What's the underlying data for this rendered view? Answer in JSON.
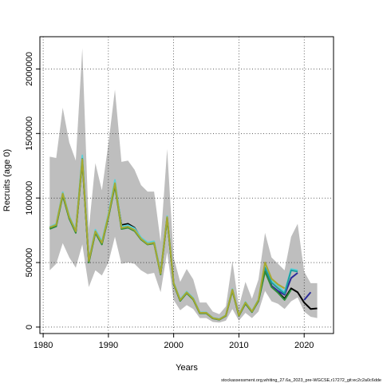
{
  "chart_data": {
    "type": "line",
    "xlabel": "Years",
    "ylabel": "Recruits (age 0)",
    "xlim": [
      1979.5,
      2024.5
    ],
    "ylim": [
      -50000,
      2250000
    ],
    "x_ticks": [
      1980,
      1990,
      2000,
      2010,
      2020
    ],
    "y_ticks": [
      0,
      500000,
      1000000,
      1500000,
      2000000
    ],
    "grid": "dotted",
    "footer": "stockassessment.org,whiting_27.6a_2023_pre-WGCSE,r17272_git:ec2c2a0c6dde",
    "colors": {
      "band": "#bebebe",
      "black": "#000000",
      "navy": "#2c2c9a",
      "cyan": "#5fd0d8",
      "teal": "#1e9e9e",
      "green": "#2e8b3a",
      "olive": "#a8a830"
    },
    "band": {
      "x": [
        1981,
        1982,
        1983,
        1984,
        1985,
        1986,
        1987,
        1988,
        1989,
        1990,
        1991,
        1992,
        1993,
        1994,
        1995,
        1996,
        1997,
        1998,
        1999,
        2000,
        2001,
        2002,
        2003,
        2004,
        2005,
        2006,
        2007,
        2008,
        2009,
        2010,
        2011,
        2012,
        2013,
        2014,
        2015,
        2016,
        2017,
        2018,
        2019,
        2020,
        2021,
        2022
      ],
      "upper": [
        1320000,
        1310000,
        1700000,
        1430000,
        1290000,
        2160000,
        760000,
        1270000,
        1060000,
        1420000,
        1840000,
        1280000,
        1290000,
        1220000,
        1100000,
        1050000,
        1050000,
        660000,
        1380000,
        540000,
        350000,
        450000,
        370000,
        190000,
        190000,
        120000,
        100000,
        160000,
        510000,
        160000,
        350000,
        220000,
        370000,
        730000,
        540000,
        490000,
        440000,
        700000,
        800000,
        430000,
        340000,
        340000
      ],
      "lower": [
        440000,
        490000,
        650000,
        540000,
        460000,
        640000,
        310000,
        440000,
        400000,
        500000,
        700000,
        490000,
        500000,
        490000,
        440000,
        410000,
        420000,
        270000,
        580000,
        210000,
        130000,
        170000,
        140000,
        70000,
        70000,
        40000,
        35000,
        50000,
        140000,
        50000,
        110000,
        70000,
        120000,
        280000,
        200000,
        180000,
        140000,
        200000,
        230000,
        120000,
        80000,
        70000
      ]
    },
    "series": [
      {
        "color": "#000000",
        "x": [
          1981,
          1982,
          1983,
          1984,
          1985,
          1986,
          1987,
          1988,
          1989,
          1990,
          1991,
          1992,
          1993,
          1994,
          1995,
          1996,
          1997,
          1998,
          1999,
          2000,
          2001,
          2002,
          2003,
          2004,
          2005,
          2006,
          2007,
          2008,
          2009,
          2010,
          2011,
          2012,
          2013,
          2014,
          2015,
          2016,
          2017,
          2018,
          2019,
          2020,
          2021,
          2022
        ],
        "values": [
          770000,
          790000,
          1030000,
          850000,
          740000,
          1300000,
          510000,
          740000,
          650000,
          860000,
          1110000,
          790000,
          800000,
          770000,
          690000,
          650000,
          660000,
          420000,
          850000,
          340000,
          210000,
          270000,
          220000,
          110000,
          110000,
          70000,
          60000,
          90000,
          290000,
          90000,
          190000,
          120000,
          210000,
          450000,
          320000,
          270000,
          220000,
          300000,
          270000,
          190000,
          140000,
          145000
        ]
      },
      {
        "color": "#2c2c9a",
        "x": [
          1981,
          1982,
          1983,
          1984,
          1985,
          1986,
          1987,
          1988,
          1989,
          1990,
          1991,
          1992,
          1993,
          1994,
          1995,
          1996,
          1997,
          1998,
          1999,
          2000,
          2001,
          2002,
          2003,
          2004,
          2005,
          2006,
          2007,
          2008,
          2009,
          2010,
          2011,
          2012,
          2013,
          2014,
          2015,
          2016,
          2017,
          2018,
          2019
        ],
        "values": [
          765000,
          785000,
          1025000,
          845000,
          735000,
          1295000,
          505000,
          735000,
          645000,
          855000,
          1105000,
          770000,
          780000,
          755000,
          685000,
          645000,
          655000,
          415000,
          845000,
          335000,
          205000,
          265000,
          215000,
          108000,
          108000,
          68000,
          58000,
          88000,
          285000,
          88000,
          185000,
          118000,
          205000,
          440000,
          320000,
          280000,
          250000,
          380000,
          420000
        ]
      },
      {
        "color": "#2c2c9a",
        "x": [
          2020,
          2021
        ],
        "values": [
          210000,
          270000
        ]
      },
      {
        "color": "#5fd0d8",
        "x": [
          1981,
          1982,
          1983,
          1984,
          1985,
          1986,
          1987,
          1988,
          1989,
          1990,
          1991,
          1992,
          1993,
          1994,
          1995,
          1996,
          1997,
          1998,
          1999,
          2000,
          2001,
          2002,
          2003,
          2004,
          2005,
          2006,
          2007,
          2008,
          2009,
          2010,
          2011,
          2012,
          2013,
          2014,
          2015,
          2016,
          2017,
          2018,
          2019
        ],
        "values": [
          775000,
          800000,
          1045000,
          860000,
          750000,
          1330000,
          520000,
          755000,
          665000,
          875000,
          1140000,
          780000,
          790000,
          765000,
          695000,
          655000,
          665000,
          425000,
          860000,
          345000,
          215000,
          275000,
          225000,
          114000,
          114000,
          72000,
          62000,
          92000,
          295000,
          92000,
          195000,
          123000,
          215000,
          495000,
          360000,
          320000,
          270000,
          450000,
          440000
        ]
      },
      {
        "color": "#1e9e9e",
        "x": [
          1981,
          1982,
          1983,
          1984,
          1985,
          1986,
          1987,
          1988,
          1989,
          1990,
          1991,
          1992,
          1993,
          1994,
          1995,
          1996,
          1997,
          1998,
          1999,
          2000,
          2001,
          2002,
          2003,
          2004,
          2005,
          2006,
          2007,
          2008,
          2009,
          2010,
          2011,
          2012,
          2013,
          2014,
          2015,
          2016,
          2017,
          2018,
          2019
        ],
        "values": [
          768000,
          788000,
          1030000,
          848000,
          738000,
          1305000,
          508000,
          738000,
          648000,
          858000,
          1110000,
          765000,
          775000,
          750000,
          682000,
          642000,
          652000,
          412000,
          848000,
          337000,
          207000,
          267000,
          217000,
          110000,
          110000,
          69000,
          59000,
          89000,
          288000,
          89000,
          188000,
          119000,
          208000,
          460000,
          345000,
          300000,
          260000,
          440000,
          430000
        ]
      },
      {
        "color": "#2e8b3a",
        "x": [
          1981,
          1982,
          1983,
          1984,
          1985,
          1986,
          1987,
          1988,
          1989,
          1990,
          1991,
          1992,
          1993,
          1994,
          1995,
          1996,
          1997,
          1998,
          1999,
          2000,
          2001,
          2002,
          2003,
          2004,
          2005,
          2006,
          2007,
          2008,
          2009,
          2010,
          2011,
          2012,
          2013,
          2014,
          2015,
          2016,
          2017,
          2018
        ],
        "values": [
          760000,
          780000,
          1020000,
          840000,
          730000,
          1285000,
          500000,
          730000,
          640000,
          850000,
          1095000,
          760000,
          770000,
          745000,
          678000,
          640000,
          648000,
          408000,
          842000,
          333000,
          203000,
          263000,
          213000,
          107000,
          107000,
          67000,
          57000,
          87000,
          282000,
          87000,
          182000,
          116000,
          202000,
          430000,
          310000,
          265000,
          210000,
          290000
        ]
      },
      {
        "color": "#a8a830",
        "x": [
          1981,
          1982,
          1983,
          1984,
          1985,
          1986,
          1987,
          1988,
          1989,
          1990,
          1991,
          1992,
          1993,
          1994,
          1995,
          1996,
          1997,
          1998,
          1999,
          2000,
          2001,
          2002,
          2003,
          2004,
          2005,
          2006,
          2007,
          2008,
          2009,
          2010,
          2011,
          2012,
          2013,
          2014,
          2015,
          2016,
          2017
        ],
        "values": [
          772000,
          792000,
          1035000,
          852000,
          742000,
          1300000,
          512000,
          742000,
          652000,
          862000,
          1115000,
          768000,
          778000,
          752000,
          684000,
          644000,
          654000,
          414000,
          852000,
          340000,
          209000,
          269000,
          219000,
          111000,
          111000,
          70000,
          60000,
          90000,
          290000,
          90000,
          190000,
          121000,
          210000,
          500000,
          375000,
          330000,
          300000
        ]
      }
    ]
  }
}
